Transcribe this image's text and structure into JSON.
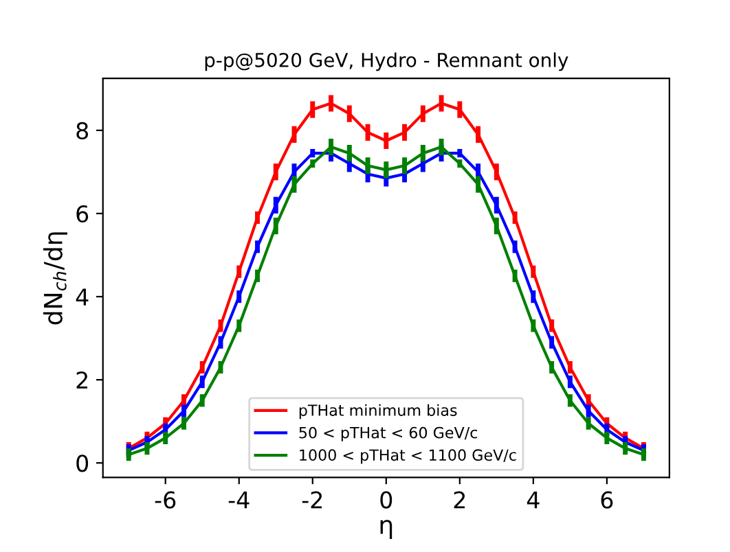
{
  "chart_data": {
    "type": "line",
    "title": "p-p@5020 GeV, Hydro - Remnant only",
    "xlabel": "η",
    "ylabel": "dN$_{ch}$/dη",
    "x": [
      -7,
      -6.5,
      -6,
      -5.5,
      -5,
      -4.5,
      -4,
      -3.5,
      -3,
      -2.5,
      -2,
      -1.5,
      -1,
      -0.5,
      0,
      0.5,
      1,
      1.5,
      2,
      2.5,
      3,
      3.5,
      4,
      4.5,
      5,
      5.5,
      6,
      6.5,
      7
    ],
    "series": [
      {
        "name": "pTHat minimum bias",
        "color": "#ff0000",
        "values": [
          0.35,
          0.6,
          0.95,
          1.5,
          2.3,
          3.3,
          4.6,
          5.9,
          7.0,
          7.9,
          8.5,
          8.65,
          8.4,
          7.95,
          7.75,
          7.95,
          8.4,
          8.65,
          8.5,
          7.9,
          7.0,
          5.9,
          4.6,
          3.3,
          2.3,
          1.5,
          0.95,
          0.6,
          0.35
        ],
        "errors": [
          0.15,
          0.15,
          0.15,
          0.15,
          0.15,
          0.15,
          0.15,
          0.15,
          0.2,
          0.2,
          0.2,
          0.2,
          0.2,
          0.2,
          0.2,
          0.2,
          0.2,
          0.2,
          0.2,
          0.2,
          0.2,
          0.15,
          0.15,
          0.15,
          0.15,
          0.15,
          0.15,
          0.15,
          0.15
        ]
      },
      {
        "name": "50 < pTHat < 60 GeV/c",
        "color": "#0000ff",
        "values": [
          0.3,
          0.5,
          0.8,
          1.25,
          1.95,
          2.9,
          4.0,
          5.2,
          6.2,
          7.0,
          7.45,
          7.45,
          7.2,
          6.95,
          6.85,
          6.95,
          7.2,
          7.45,
          7.45,
          7.0,
          6.2,
          5.2,
          4.0,
          2.9,
          1.95,
          1.25,
          0.8,
          0.5,
          0.3
        ],
        "errors": [
          0.15,
          0.15,
          0.15,
          0.15,
          0.15,
          0.15,
          0.15,
          0.15,
          0.2,
          0.2,
          0.1,
          0.2,
          0.2,
          0.2,
          0.2,
          0.2,
          0.2,
          0.2,
          0.1,
          0.2,
          0.2,
          0.15,
          0.15,
          0.15,
          0.15,
          0.15,
          0.15,
          0.15,
          0.15
        ]
      },
      {
        "name": "1000 < pTHat < 1100 GeV/c",
        "color": "#008000",
        "values": [
          0.2,
          0.35,
          0.6,
          0.95,
          1.5,
          2.3,
          3.3,
          4.5,
          5.7,
          6.7,
          7.2,
          7.6,
          7.45,
          7.15,
          7.05,
          7.15,
          7.45,
          7.6,
          7.2,
          6.7,
          5.7,
          4.5,
          3.3,
          2.3,
          1.5,
          0.95,
          0.6,
          0.35,
          0.2
        ],
        "errors": [
          0.15,
          0.15,
          0.15,
          0.15,
          0.15,
          0.15,
          0.15,
          0.15,
          0.2,
          0.2,
          0.1,
          0.2,
          0.2,
          0.2,
          0.2,
          0.2,
          0.2,
          0.2,
          0.1,
          0.2,
          0.2,
          0.15,
          0.15,
          0.15,
          0.15,
          0.15,
          0.15,
          0.15,
          0.15
        ]
      }
    ],
    "xlim": [
      -7.7,
      7.7
    ],
    "ylim": [
      -0.35,
      9.25
    ],
    "xticks": [
      -6,
      -4,
      -2,
      0,
      2,
      4,
      6
    ],
    "yticks": [
      0,
      2,
      4,
      6,
      8
    ],
    "grid": false,
    "legend": "bottom",
    "marker": "none",
    "line_style": "solid"
  }
}
